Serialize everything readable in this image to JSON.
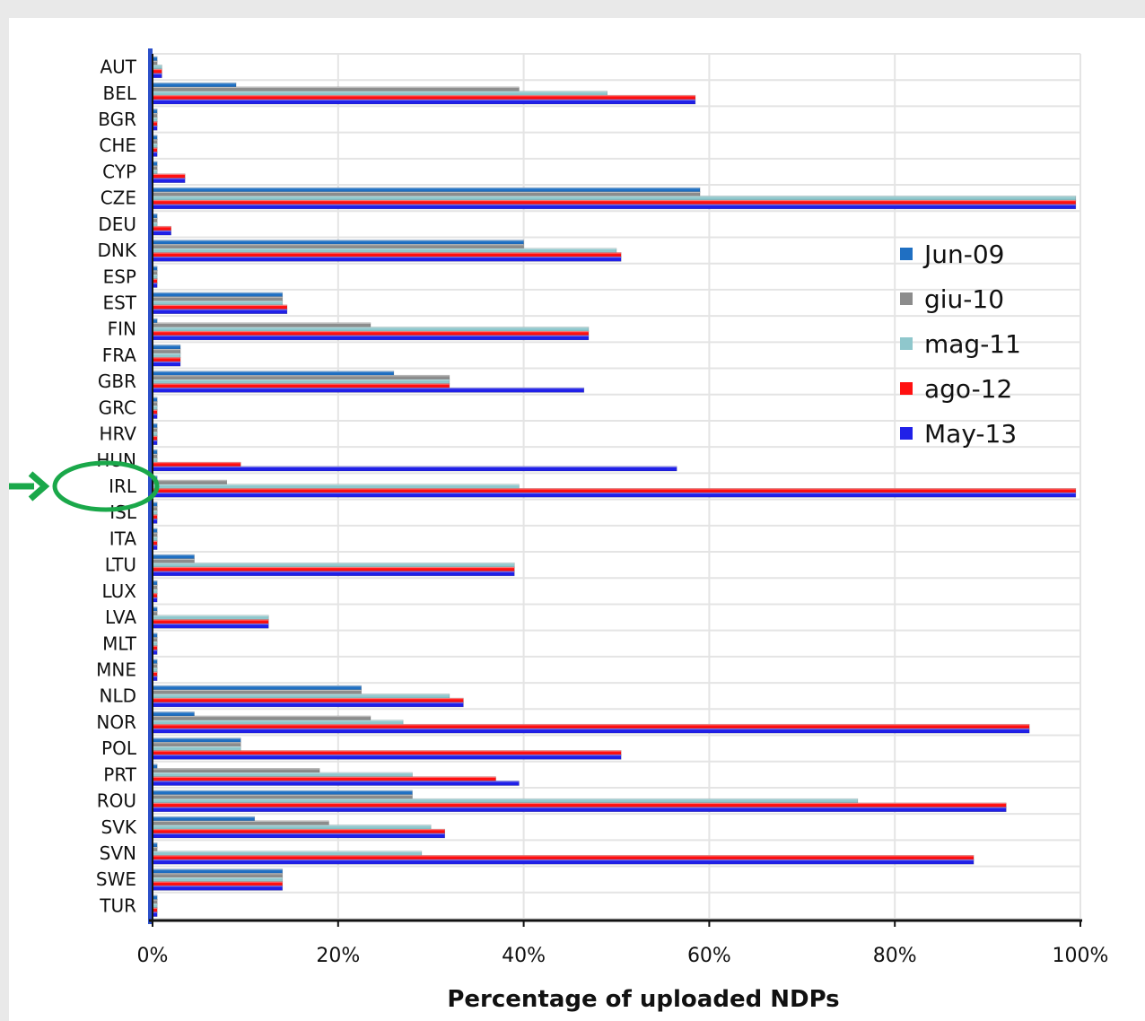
{
  "chart_data": {
    "type": "bar",
    "orientation": "horizontal",
    "xlabel": "Percentage of uploaded NDPs",
    "xlim": [
      0,
      100
    ],
    "xticks": [
      "0%",
      "20%",
      "40%",
      "60%",
      "80%",
      "100%"
    ],
    "grid": true,
    "legend_position": "right",
    "categories": [
      "AUT",
      "BEL",
      "BGR",
      "CHE",
      "CYP",
      "CZE",
      "DEU",
      "DNK",
      "ESP",
      "EST",
      "FIN",
      "FRA",
      "GBR",
      "GRC",
      "HRV",
      "HUN",
      "IRL",
      "ISL",
      "ITA",
      "LTU",
      "LUX",
      "LVA",
      "MLT",
      "MNE",
      "NLD",
      "NOR",
      "POL",
      "PRT",
      "ROU",
      "SVK",
      "SVN",
      "SWE",
      "TUR"
    ],
    "series": [
      {
        "name": "Jun-09",
        "color": "#1f6fc2",
        "values": [
          0.5,
          9,
          0.5,
          0.5,
          0.5,
          59,
          0.5,
          40,
          0.5,
          14,
          0.5,
          3,
          26,
          0.5,
          0.5,
          0.5,
          0.5,
          0.5,
          0.5,
          4.5,
          0.5,
          0.5,
          0.5,
          0.5,
          22.5,
          4.5,
          9.5,
          0.5,
          28,
          11,
          0.5,
          14,
          0.5
        ]
      },
      {
        "name": "giu-10",
        "color": "#8c8c8c",
        "values": [
          0.5,
          39.5,
          0.5,
          0.5,
          0.5,
          59,
          0.5,
          40,
          0.5,
          14,
          23.5,
          3,
          32,
          0.5,
          0.5,
          0.5,
          8,
          0.5,
          0.5,
          4.5,
          0.5,
          0.5,
          0.5,
          0.5,
          22.5,
          23.5,
          9.5,
          18,
          28,
          19,
          0.5,
          14,
          0.5
        ]
      },
      {
        "name": "mag-11",
        "color": "#8fc7cc",
        "values": [
          1,
          49,
          0.5,
          0.5,
          0.5,
          99.5,
          0.5,
          50,
          0.5,
          14,
          47,
          3,
          32,
          0.5,
          0.5,
          0.5,
          39.5,
          0.5,
          0.5,
          39,
          0.5,
          12.5,
          0.5,
          0.5,
          32,
          27,
          9.5,
          28,
          76,
          30,
          29,
          14,
          0.5
        ]
      },
      {
        "name": "ago-12",
        "color": "#ff1010",
        "values": [
          1,
          58.5,
          0.5,
          0.5,
          3.5,
          99.5,
          2,
          50.5,
          0.5,
          14.5,
          47,
          3,
          32,
          0.5,
          0.5,
          9.5,
          99.5,
          0.5,
          0.5,
          39,
          0.5,
          12.5,
          0.5,
          0.5,
          33.5,
          94.5,
          50.5,
          37,
          92,
          31.5,
          88.5,
          14,
          0.5
        ]
      },
      {
        "name": "May-13",
        "color": "#2020e8",
        "values": [
          1,
          58.5,
          0.5,
          0.5,
          3.5,
          99.5,
          2,
          50.5,
          0.5,
          14.5,
          47,
          3,
          46.5,
          0.5,
          0.5,
          56.5,
          99.5,
          0.5,
          0.5,
          39,
          0.5,
          12.5,
          0.5,
          0.5,
          33.5,
          94.5,
          50.5,
          39.5,
          92,
          31.5,
          88.5,
          14,
          0.5
        ]
      }
    ]
  },
  "annotation": {
    "highlighted_category": "IRL",
    "arrow_color": "#1aa84a"
  }
}
